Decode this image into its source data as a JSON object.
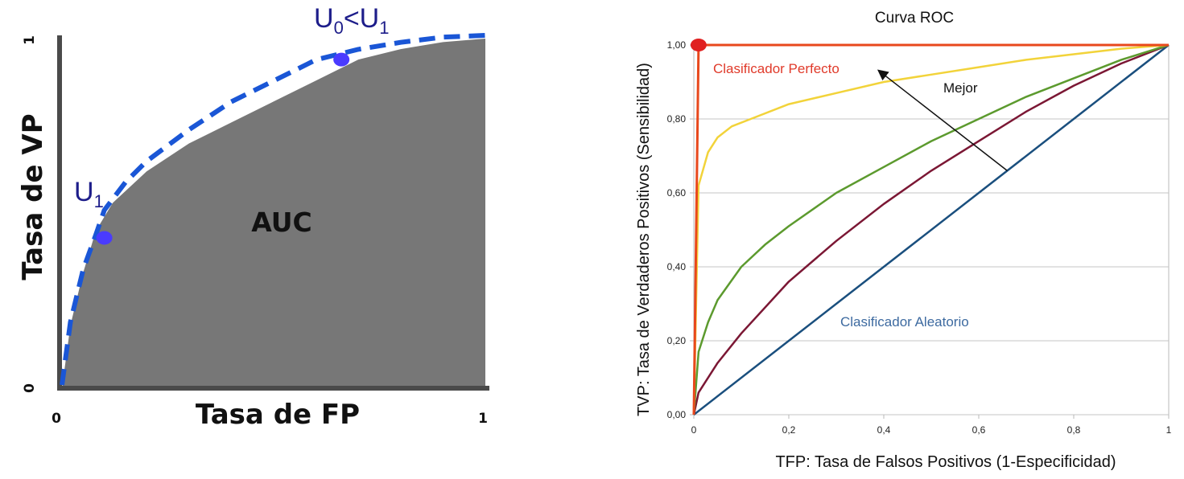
{
  "chart_data": [
    {
      "type": "area",
      "xlabel": "Tasa de FP",
      "ylabel": "Tasa de VP",
      "xlim": [
        0,
        1
      ],
      "ylim": [
        0,
        1
      ],
      "x_tick_labels": [
        "0",
        "1"
      ],
      "y_tick_labels": [
        "0",
        "1"
      ],
      "area_label": "AUC",
      "area_color": "#777777",
      "curve_color": "#1a56d6",
      "point_color": "#4a3bff",
      "area": {
        "x": [
          0,
          0.02,
          0.05,
          0.08,
          0.12,
          0.2,
          0.3,
          0.4,
          0.5,
          0.6,
          0.7,
          0.8,
          0.9,
          1.0
        ],
        "y": [
          0,
          0.18,
          0.33,
          0.45,
          0.53,
          0.62,
          0.7,
          0.76,
          0.82,
          0.88,
          0.94,
          0.97,
          0.99,
          1.0
        ]
      },
      "upper_curve": {
        "x": [
          0,
          0.02,
          0.05,
          0.08,
          0.1,
          0.15,
          0.2,
          0.3,
          0.4,
          0.5,
          0.6,
          0.7,
          0.8,
          0.9,
          1.0
        ],
        "y": [
          0,
          0.18,
          0.33,
          0.43,
          0.5,
          0.58,
          0.64,
          0.73,
          0.81,
          0.87,
          0.93,
          0.96,
          0.98,
          0.995,
          1.0
        ]
      },
      "points": [
        {
          "label": "U",
          "label_sub": "1",
          "x": 0.1,
          "y": 0.43
        },
        {
          "label": "U",
          "label_sub": "0",
          "label_mid": "<U",
          "label_sub2": "1",
          "x": 0.66,
          "y": 0.94
        }
      ]
    },
    {
      "type": "line",
      "title": "Curva ROC",
      "xlabel": "TFP: Tasa de Falsos Positivos (1-Especificidad)",
      "ylabel": "TVP: Tasa de Verdaderos Positivos (Sensibilidad)",
      "xlim": [
        0,
        1
      ],
      "ylim": [
        0,
        1
      ],
      "x_ticks": [
        0,
        0.2,
        0.4,
        0.6,
        0.8,
        1
      ],
      "x_tick_labels": [
        "0",
        "0,2",
        "0,4",
        "0,6",
        "0,8",
        "1"
      ],
      "y_ticks": [
        0,
        0.2,
        0.4,
        0.6,
        0.8,
        1
      ],
      "y_tick_labels": [
        "0,00",
        "0,20",
        "0,40",
        "0,60",
        "0,80",
        "1,00"
      ],
      "grid": "horizontal",
      "series": [
        {
          "color": "#e8481c",
          "x": [
            0,
            0.01,
            1
          ],
          "y": [
            0,
            1,
            1
          ]
        },
        {
          "color": "#f2d33a",
          "x": [
            0,
            0.01,
            0.03,
            0.05,
            0.08,
            0.12,
            0.2,
            0.3,
            0.4,
            0.5,
            0.6,
            0.7,
            0.8,
            0.9,
            1
          ],
          "y": [
            0,
            0.62,
            0.71,
            0.75,
            0.78,
            0.8,
            0.84,
            0.87,
            0.9,
            0.92,
            0.94,
            0.96,
            0.975,
            0.99,
            1
          ]
        },
        {
          "color": "#5c9a2e",
          "x": [
            0,
            0.01,
            0.03,
            0.05,
            0.1,
            0.15,
            0.2,
            0.3,
            0.4,
            0.5,
            0.6,
            0.7,
            0.8,
            0.9,
            1
          ],
          "y": [
            0,
            0.17,
            0.25,
            0.31,
            0.4,
            0.46,
            0.51,
            0.6,
            0.67,
            0.74,
            0.8,
            0.86,
            0.91,
            0.96,
            1
          ]
        },
        {
          "color": "#7b1734",
          "x": [
            0,
            0.01,
            0.05,
            0.1,
            0.2,
            0.3,
            0.4,
            0.5,
            0.6,
            0.7,
            0.8,
            0.9,
            1
          ],
          "y": [
            0,
            0.06,
            0.14,
            0.22,
            0.36,
            0.47,
            0.57,
            0.66,
            0.74,
            0.82,
            0.89,
            0.95,
            1
          ]
        },
        {
          "color": "#1a4f7e",
          "x": [
            0,
            0.2,
            0.4,
            0.6,
            0.8,
            1
          ],
          "y": [
            0,
            0.2,
            0.4,
            0.6,
            0.8,
            1
          ]
        }
      ],
      "perfect_point": {
        "x": 0.01,
        "y": 1,
        "color": "#e02020"
      },
      "annotations": [
        {
          "text": "Clasificador Perfecto",
          "color": "#e03a2a"
        },
        {
          "text": "Mejor",
          "color": "#111111"
        },
        {
          "text": "Clasificador Aleatorio",
          "color": "#3d6aa0"
        }
      ],
      "arrow": {
        "from": [
          0.66,
          0.66
        ],
        "to": [
          0.39,
          0.93
        ]
      }
    }
  ]
}
